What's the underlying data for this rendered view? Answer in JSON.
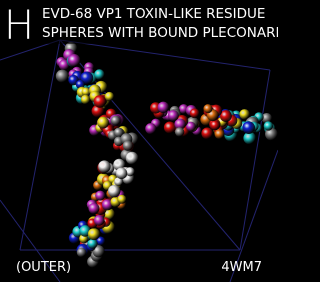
{
  "panel": {
    "letter": "H",
    "title_lines": [
      "EVD-68 VP1 TOXIN-LIKE RESIDUE",
      "SPHERES WITH BOUND PLECONARIL"
    ],
    "view": "(OUTER)",
    "pdb_id": "4WM7"
  }
}
